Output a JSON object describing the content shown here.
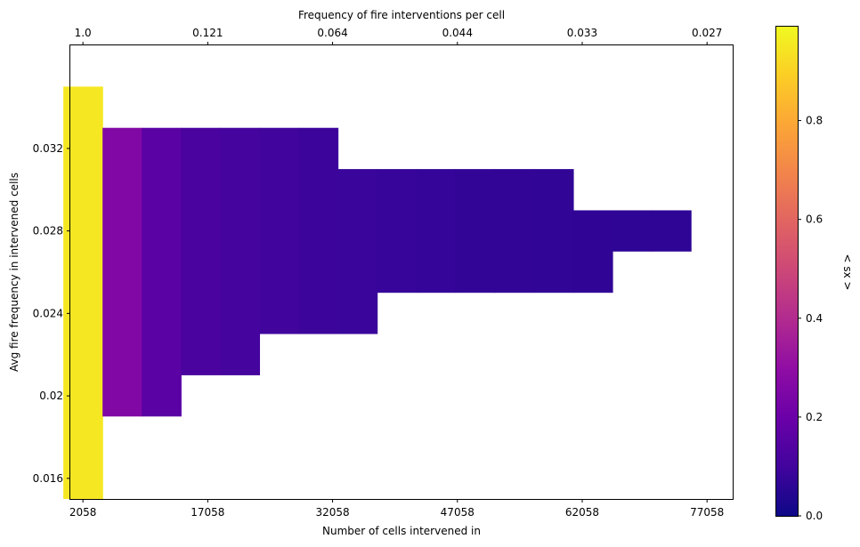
{
  "chart_data": {
    "type": "heatmap",
    "title": "",
    "xlabel": "Number of cells intervened in",
    "ylabel": "Avg fire frequency in intervened cells",
    "top_xlabel": "Frequency of fire interventions per cell",
    "colorbar_label": "< sx >",
    "colormap": "plasma",
    "xlim": [
      544.4,
      80140
    ],
    "ylim": [
      0.015,
      0.037
    ],
    "bin_width": 4714,
    "bin_height": 0.002,
    "x_ticks": [
      "2058",
      "17058",
      "32058",
      "47058",
      "62058",
      "77058"
    ],
    "x_tick_values": [
      2058,
      17058,
      32058,
      47058,
      62058,
      77058
    ],
    "top_x_ticks": [
      "1.0",
      "0.121",
      "0.064",
      "0.044",
      "0.033",
      "0.027"
    ],
    "y_ticks": [
      "0.016",
      "0.032",
      "0.028",
      "0.024",
      "0.02"
    ],
    "y_tick_values": [
      0.016,
      0.032,
      0.028,
      0.024,
      0.02
    ],
    "colorbar_ticks": [
      "0.0",
      "0.2",
      "0.4",
      "0.6",
      "0.8"
    ],
    "colorbar_tick_values": [
      0.0,
      0.2,
      0.4,
      0.6,
      0.8
    ],
    "vlim": [
      0.0,
      0.99
    ],
    "columns": [
      {
        "x": 2058,
        "ymin": 0.015,
        "ymax": 0.035,
        "value": 0.95
      },
      {
        "x": 6772,
        "ymin": 0.019,
        "ymax": 0.033,
        "value": 0.26
      },
      {
        "x": 11486,
        "ymin": 0.019,
        "ymax": 0.033,
        "value": 0.16
      },
      {
        "x": 16200,
        "ymin": 0.021,
        "ymax": 0.033,
        "value": 0.12
      },
      {
        "x": 20914,
        "ymin": 0.021,
        "ymax": 0.033,
        "value": 0.11
      },
      {
        "x": 25628,
        "ymin": 0.023,
        "ymax": 0.033,
        "value": 0.1
      },
      {
        "x": 30342,
        "ymin": 0.023,
        "ymax": 0.033,
        "value": 0.09
      },
      {
        "x": 35056,
        "ymin": 0.023,
        "ymax": 0.031,
        "value": 0.085
      },
      {
        "x": 39770,
        "ymin": 0.025,
        "ymax": 0.031,
        "value": 0.08
      },
      {
        "x": 44484,
        "ymin": 0.025,
        "ymax": 0.031,
        "value": 0.075
      },
      {
        "x": 49198,
        "ymin": 0.025,
        "ymax": 0.031,
        "value": 0.072
      },
      {
        "x": 53912,
        "ymin": 0.025,
        "ymax": 0.031,
        "value": 0.07
      },
      {
        "x": 58626,
        "ymin": 0.025,
        "ymax": 0.031,
        "value": 0.068
      },
      {
        "x": 63340,
        "ymin": 0.025,
        "ymax": 0.029,
        "value": 0.066
      },
      {
        "x": 68054,
        "ymin": 0.027,
        "ymax": 0.029,
        "value": 0.064
      },
      {
        "x": 72768,
        "ymin": 0.027,
        "ymax": 0.029,
        "value": 0.063
      }
    ]
  }
}
